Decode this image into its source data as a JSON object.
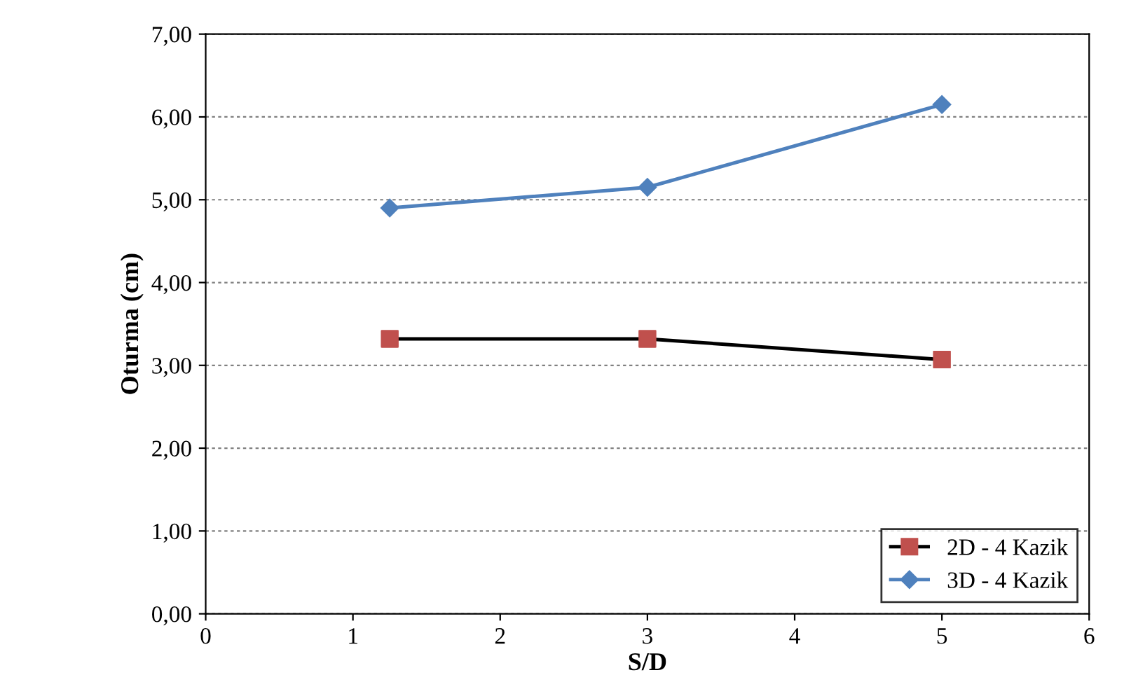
{
  "chart_data": {
    "type": "line",
    "xlabel": "S/D",
    "ylabel": "Oturma (cm)",
    "series": [
      {
        "name": "2D - 4 Kazik",
        "color": "#000000",
        "colors": [
          "#c0504d",
          "#c0504d",
          "#c0504d"
        ],
        "marker": "square",
        "x": [
          1.25,
          3,
          5
        ],
        "values": [
          3.32,
          3.32,
          3.07
        ]
      },
      {
        "name": "3D - 4 Kazik",
        "color": "#4f81bd",
        "marker": "diamond",
        "x": [
          1.25,
          3,
          5
        ],
        "values": [
          4.9,
          5.15,
          6.15
        ]
      }
    ],
    "xlim": [
      0,
      6
    ],
    "xticks": [
      0,
      1,
      2,
      3,
      4,
      5,
      6
    ],
    "ylim": [
      0,
      7
    ],
    "yticks": [
      {
        "value": 0,
        "label": "0,00"
      },
      {
        "value": 1,
        "label": "1,00"
      },
      {
        "value": 2,
        "label": "2,00"
      },
      {
        "value": 3,
        "label": "3,00"
      },
      {
        "value": 4,
        "label": "4,00"
      },
      {
        "value": 5,
        "label": "5,00"
      },
      {
        "value": 6,
        "label": "6,00"
      },
      {
        "value": 7,
        "label": "7,00"
      }
    ],
    "grid": "y",
    "legend": "bottom right",
    "line_style": "solid"
  }
}
